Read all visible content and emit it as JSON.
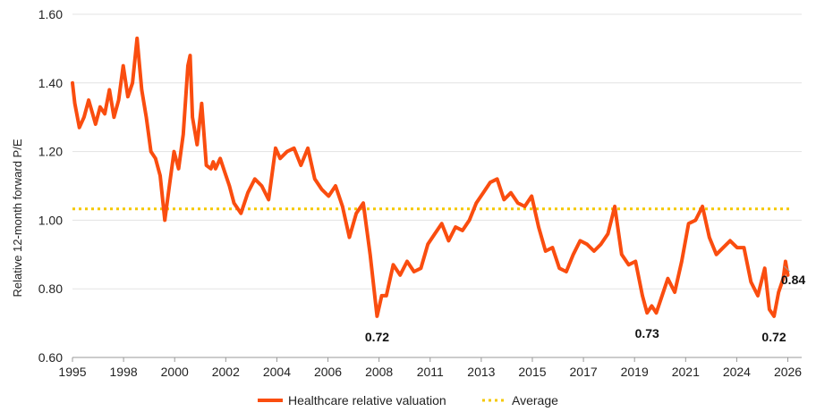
{
  "chart_data": {
    "type": "line",
    "title": "",
    "xlabel": "",
    "ylabel": "Relative 12-month forward P/E",
    "ylim": [
      0.6,
      1.6
    ],
    "yticks": [
      "0.60",
      "0.80",
      "1.00",
      "1.20",
      "1.40",
      "1.60"
    ],
    "xticks": [
      "1995",
      "1998",
      "2000",
      "2002",
      "2004",
      "2006",
      "2008",
      "2011",
      "2013",
      "2015",
      "2017",
      "2019",
      "2021",
      "2024",
      "2026"
    ],
    "grid": "horizontal",
    "legend_position": "bottom",
    "colors": {
      "series": "#fa4d0f",
      "average": "#f5c800",
      "grid": "#e3e3e3",
      "axis": "#999999"
    },
    "series": [
      {
        "name": "Healthcare relative valuation",
        "x": [
          1995.0,
          1995.1,
          1995.3,
          1995.5,
          1995.7,
          1996.0,
          1996.2,
          1996.4,
          1996.6,
          1996.8,
          1997.0,
          1997.2,
          1997.4,
          1997.6,
          1997.8,
          1998.0,
          1998.2,
          1998.4,
          1998.6,
          1998.8,
          1999.0,
          1999.2,
          1999.4,
          1999.6,
          1999.8,
          2000.0,
          2000.1,
          2000.2,
          2000.4,
          2000.6,
          2000.8,
          2001.0,
          2001.1,
          2001.2,
          2001.4,
          2001.6,
          2001.8,
          2002.0,
          2002.3,
          2002.6,
          2002.9,
          2003.2,
          2003.5,
          2003.8,
          2004.0,
          2004.3,
          2004.6,
          2004.9,
          2005.2,
          2005.5,
          2005.8,
          2006.1,
          2006.4,
          2006.7,
          2007.0,
          2007.3,
          2007.6,
          2007.9,
          2008.2,
          2008.4,
          2008.6,
          2008.9,
          2009.2,
          2009.5,
          2009.8,
          2010.1,
          2010.4,
          2010.7,
          2011.0,
          2011.3,
          2011.6,
          2011.9,
          2012.2,
          2012.5,
          2012.8,
          2013.1,
          2013.4,
          2013.7,
          2014.0,
          2014.3,
          2014.6,
          2014.9,
          2015.2,
          2015.5,
          2015.8,
          2016.1,
          2016.4,
          2016.7,
          2017.0,
          2017.3,
          2017.6,
          2017.9,
          2018.2,
          2018.5,
          2018.8,
          2019.1,
          2019.4,
          2019.7,
          2019.9,
          2020.1,
          2020.3,
          2020.5,
          2020.8,
          2021.1,
          2021.4,
          2021.7,
          2022.0,
          2022.3,
          2022.6,
          2022.9,
          2023.2,
          2023.5,
          2023.8,
          2024.1,
          2024.4,
          2024.7,
          2025.0,
          2025.2,
          2025.4,
          2025.6,
          2025.8,
          2025.9,
          2026.0
        ],
        "values": [
          1.4,
          1.34,
          1.27,
          1.3,
          1.35,
          1.28,
          1.33,
          1.31,
          1.38,
          1.3,
          1.35,
          1.45,
          1.36,
          1.4,
          1.53,
          1.38,
          1.3,
          1.2,
          1.18,
          1.13,
          1.0,
          1.1,
          1.2,
          1.15,
          1.25,
          1.45,
          1.48,
          1.3,
          1.22,
          1.34,
          1.16,
          1.15,
          1.17,
          1.15,
          1.18,
          1.14,
          1.1,
          1.05,
          1.02,
          1.08,
          1.12,
          1.1,
          1.06,
          1.21,
          1.18,
          1.2,
          1.21,
          1.16,
          1.21,
          1.12,
          1.09,
          1.07,
          1.1,
          1.04,
          0.95,
          1.02,
          1.05,
          0.9,
          0.72,
          0.78,
          0.78,
          0.87,
          0.84,
          0.88,
          0.85,
          0.86,
          0.93,
          0.96,
          0.99,
          0.94,
          0.98,
          0.97,
          1.0,
          1.05,
          1.08,
          1.11,
          1.12,
          1.06,
          1.08,
          1.05,
          1.04,
          1.07,
          0.98,
          0.91,
          0.92,
          0.86,
          0.85,
          0.9,
          0.94,
          0.93,
          0.91,
          0.93,
          0.96,
          1.04,
          0.9,
          0.87,
          0.88,
          0.78,
          0.73,
          0.75,
          0.73,
          0.77,
          0.83,
          0.79,
          0.88,
          0.99,
          1.0,
          1.04,
          0.95,
          0.9,
          0.92,
          0.94,
          0.92,
          0.92,
          0.82,
          0.78,
          0.86,
          0.74,
          0.72,
          0.79,
          0.83,
          0.88,
          0.84
        ]
      },
      {
        "name": "Average",
        "value": 1.033
      }
    ],
    "annotations": [
      {
        "text": "0.72",
        "x": 2008.2,
        "y": 0.72
      },
      {
        "text": "0.73",
        "x": 2019.9,
        "y": 0.73
      },
      {
        "text": "0.72",
        "x": 2025.4,
        "y": 0.72
      },
      {
        "text": "0.84",
        "x": 2026.0,
        "y": 0.84
      }
    ]
  }
}
